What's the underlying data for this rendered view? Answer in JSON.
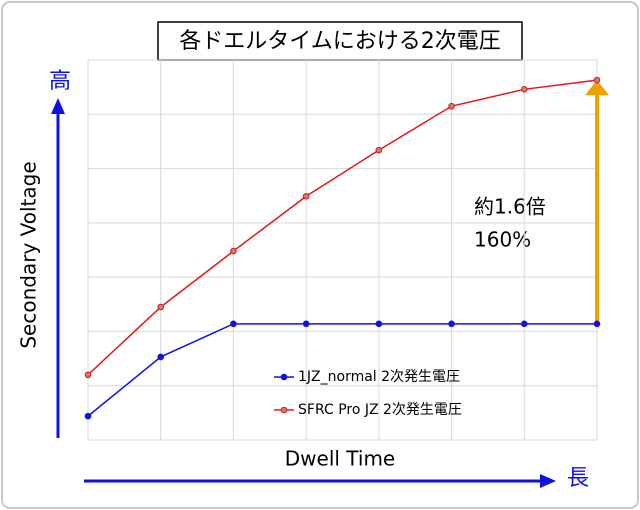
{
  "chart_data": {
    "type": "line",
    "title": "各ドエルタイムにおける2次電圧",
    "y_label": "Secondary Voltage",
    "x_label": "Dwell Time",
    "y_arrow_label": "高",
    "x_arrow_label": "長",
    "annotations": [
      "約1.6倍",
      "160%"
    ],
    "categories": [
      null,
      null,
      null,
      null,
      null,
      null,
      null,
      null
    ],
    "series": [
      {
        "name": "1JZ_normal 2次発生電圧",
        "color": "#1010e0",
        "values": [
          0.44,
          1.53,
          2.14,
          2.14,
          2.14,
          2.14,
          2.14,
          2.14
        ]
      },
      {
        "name": "SFRC Pro JZ 2次発生電圧",
        "color": "#e01818",
        "values": [
          1.2,
          2.45,
          3.48,
          4.49,
          5.34,
          6.15,
          6.46,
          6.63
        ]
      }
    ],
    "ylim": [
      0,
      7
    ],
    "yticks": [
      0,
      1,
      2,
      3,
      4,
      5,
      6,
      7
    ],
    "grid": true,
    "arrow_color": "#f0a000"
  }
}
